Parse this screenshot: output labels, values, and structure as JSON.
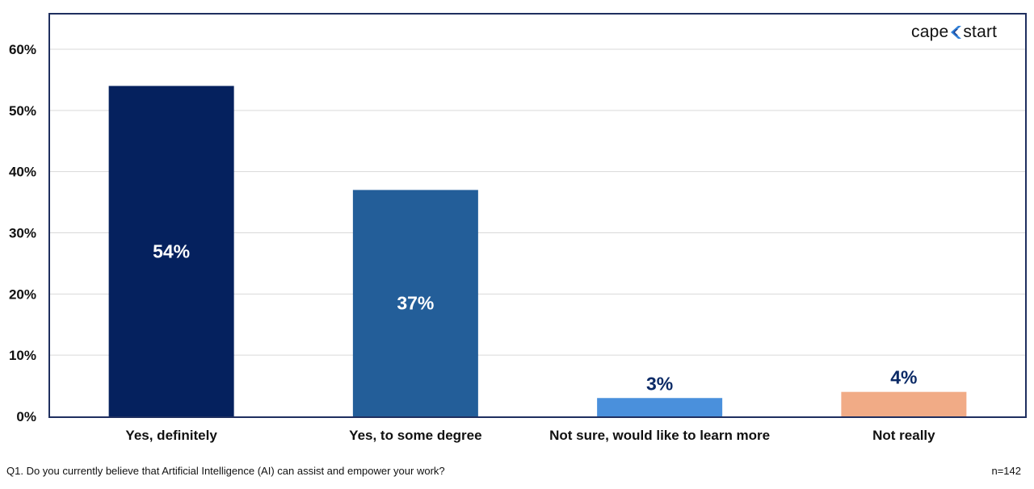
{
  "brand": {
    "logo_left": "cape",
    "logo_right": "start",
    "logo_mark_colors": [
      "#2f7fd6",
      "#1a3f8f"
    ]
  },
  "footer": {
    "question": "Q1. Do you currently believe that Artificial Intelligence (AI) can assist and empower your work?",
    "sample": "n=142"
  },
  "chart_data": {
    "type": "bar",
    "categories": [
      "Yes, definitely",
      "Yes, to some degree",
      "Not sure, would like to learn more",
      "Not really"
    ],
    "values": [
      54,
      37,
      3,
      4
    ],
    "value_labels": [
      "54%",
      "37%",
      "3%",
      "4%"
    ],
    "colors": [
      "#05215e",
      "#235e99",
      "#4a90dc",
      "#f1ab86"
    ],
    "label_colors": [
      "#ffffff",
      "#ffffff",
      "#0b2a66",
      "#0b2a66"
    ],
    "label_inside": [
      true,
      true,
      false,
      false
    ],
    "yticks": [
      0,
      10,
      20,
      30,
      40,
      50,
      60
    ],
    "ytick_labels": [
      "0%",
      "10%",
      "20%",
      "30%",
      "40%",
      "50%",
      "60%"
    ],
    "ylim": [
      0,
      60
    ],
    "grid": true,
    "title": "",
    "xlabel": "",
    "ylabel": ""
  }
}
